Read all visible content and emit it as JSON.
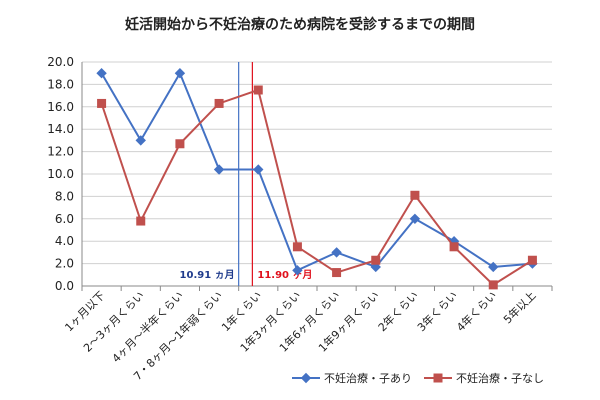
{
  "chart_data": {
    "type": "line",
    "title": "妊活開始から不妊治療のため病院を受診するまでの期間",
    "xlabel": "",
    "ylabel": "",
    "categories": [
      "1ヶ月以下",
      "2～3ヶ月くらい",
      "4ヶ月～半年くらい",
      "7・8ヶ月～1年弱くらい",
      "1年くらい",
      "1年3ヶ月くらい",
      "1年6ヶ月くらい",
      "1年9ヶ月くらい",
      "2年くらい",
      "3年くらい",
      "4年くらい",
      "5年以上"
    ],
    "series": [
      {
        "name": "不妊治療・子あり",
        "color": "#4472C4",
        "marker": "diamond",
        "values": [
          19.0,
          13.0,
          19.0,
          10.4,
          10.4,
          1.4,
          3.0,
          1.7,
          6.0,
          4.0,
          1.7,
          2.0
        ]
      },
      {
        "name": "不妊治療・子なし",
        "color": "#C0504D",
        "marker": "square",
        "values": [
          16.3,
          5.8,
          12.7,
          16.3,
          17.5,
          3.5,
          1.2,
          2.3,
          8.1,
          3.5,
          0.1,
          2.3
        ]
      }
    ],
    "ylim": [
      0,
      20
    ],
    "yticks": [
      "0.0",
      "2.0",
      "4.0",
      "6.0",
      "8.0",
      "10.0",
      "12.0",
      "14.0",
      "16.0",
      "18.0",
      "20.0"
    ],
    "grid": true,
    "legend": "bottom",
    "annotations": [
      {
        "label": "10.91 ヵ月",
        "position_index": 3.5,
        "color": "#1F3B8C",
        "line_color": "#4472C4"
      },
      {
        "label": "11.90 ヶ月",
        "position_index": 3.85,
        "color": "#E0101C",
        "line_color": "#E0101C"
      }
    ]
  }
}
